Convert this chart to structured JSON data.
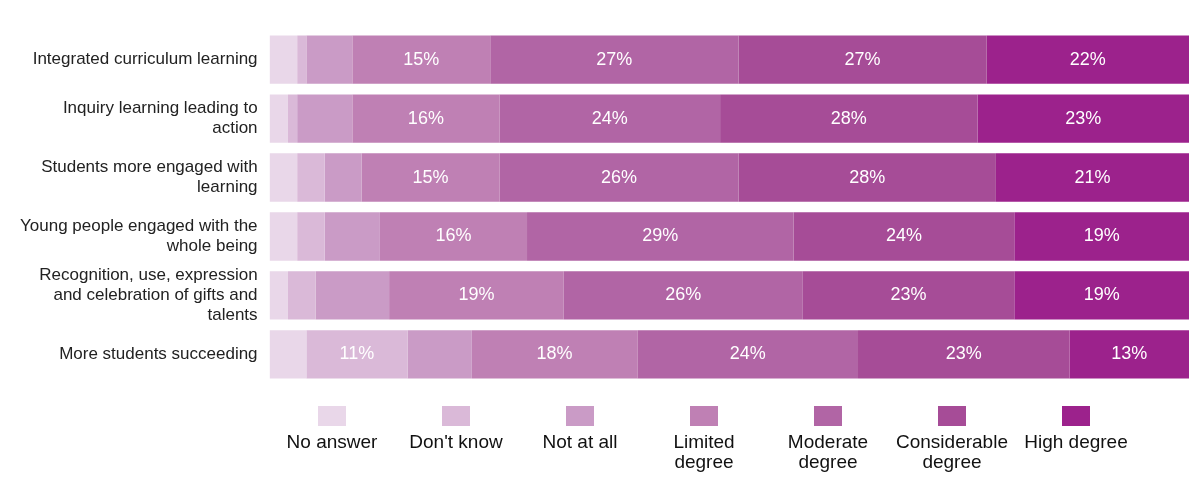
{
  "chart_data": {
    "type": "bar",
    "orientation": "horizontal",
    "stacked": true,
    "xlim": [
      0,
      100
    ],
    "tick_labels": "y",
    "grid": false,
    "legend": "bottom",
    "categories": [
      "Integrated curriculum learning",
      "Inquiry learning leading to action",
      "Students more engaged with learning",
      "Young people engaged with the whole being",
      "Recognition, use, expression and celebration of gifts and talents",
      "More students succeeding"
    ],
    "series": [
      {
        "name": "No answer",
        "color": "#e9d7e9",
        "values": [
          3,
          2,
          3,
          3,
          2,
          4
        ],
        "value_labels": [
          null,
          null,
          null,
          null,
          null,
          null
        ]
      },
      {
        "name": "Don't know",
        "color": "#dab9d8",
        "values": [
          1,
          1,
          3,
          3,
          3,
          11
        ],
        "value_labels": [
          null,
          null,
          null,
          null,
          null,
          "11%"
        ]
      },
      {
        "name": "Not at all",
        "color": "#ca9bc6",
        "values": [
          5,
          6,
          4,
          6,
          8,
          7
        ],
        "value_labels": [
          null,
          null,
          null,
          null,
          null,
          null
        ]
      },
      {
        "name": "Limited degree",
        "color": "#bf80b4",
        "values": [
          15,
          16,
          15,
          16,
          19,
          18
        ],
        "value_labels": [
          "15%",
          "16%",
          "15%",
          "16%",
          "19%",
          "18%"
        ]
      },
      {
        "name": "Moderate degree",
        "color": "#b165a5",
        "values": [
          27,
          24,
          26,
          29,
          26,
          24
        ],
        "value_labels": [
          "27%",
          "24%",
          "26%",
          "29%",
          "26%",
          "24%"
        ]
      },
      {
        "name": "Considerable degree",
        "color": "#a64c97",
        "values": [
          27,
          28,
          28,
          24,
          23,
          23
        ],
        "value_labels": [
          "27%",
          "28%",
          "28%",
          "24%",
          "23%",
          "23%"
        ]
      },
      {
        "name": "High degree",
        "color": "#9c228c",
        "values": [
          22,
          23,
          21,
          19,
          19,
          13
        ],
        "value_labels": [
          "22%",
          "23%",
          "21%",
          "19%",
          "19%",
          "13%"
        ]
      }
    ]
  }
}
